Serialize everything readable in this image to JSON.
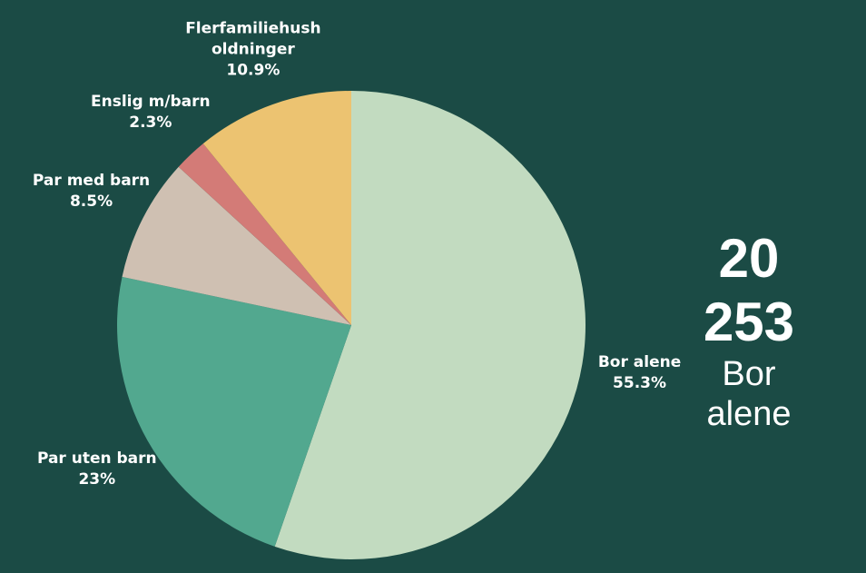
{
  "chart_data": {
    "type": "pie",
    "categories": [
      "Bor alene",
      "Par uten barn",
      "Par med barn",
      "Enslig m/barn",
      "Flerfamiliehush\noldninger"
    ],
    "values": [
      55.3,
      23,
      8.5,
      2.3,
      10.9
    ],
    "value_labels": [
      "55.3%",
      "23%",
      "8.5%",
      "2.3%",
      "10.9%"
    ],
    "colors": [
      "#c2dbc0",
      "#52a88f",
      "#cfc0b2",
      "#d37b77",
      "#ecc371"
    ],
    "annotation": {
      "number": "20 253",
      "text": "Bor alene"
    }
  }
}
